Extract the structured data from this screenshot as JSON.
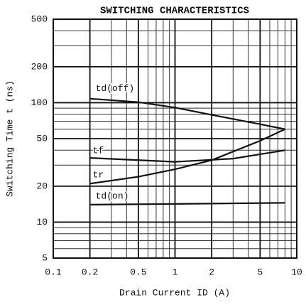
{
  "chart_data": {
    "type": "line",
    "title": "SWITCHING CHARACTERISTICS",
    "xlabel": "Drain Current ID (A)",
    "ylabel": "Switching Time t (ns)",
    "xscale": "log",
    "yscale": "log",
    "grid": true,
    "xlim": [
      0.1,
      10
    ],
    "ylim": [
      5,
      500
    ],
    "xticks": [
      0.1,
      0.2,
      0.5,
      1,
      2,
      5,
      10
    ],
    "yticks": [
      5,
      10,
      20,
      50,
      100,
      200,
      500
    ],
    "series": [
      {
        "name": "td(off)",
        "color": "#111111",
        "x": [
          0.2,
          0.5,
          1,
          2,
          5,
          8
        ],
        "values": [
          108,
          101,
          91,
          79,
          66,
          60
        ]
      },
      {
        "name": "tf",
        "color": "#111111",
        "x": [
          0.2,
          1,
          3,
          8
        ],
        "values": [
          34.5,
          32,
          34,
          40
        ]
      },
      {
        "name": "tr",
        "color": "#111111",
        "x": [
          0.2,
          0.5,
          1,
          2,
          5,
          8
        ],
        "values": [
          21,
          24,
          27.7,
          33,
          48,
          60
        ]
      },
      {
        "name": "td(on)",
        "color": "#111111",
        "x": [
          0.2,
          1,
          8
        ],
        "values": [
          14,
          14.2,
          14.5
        ]
      }
    ]
  }
}
